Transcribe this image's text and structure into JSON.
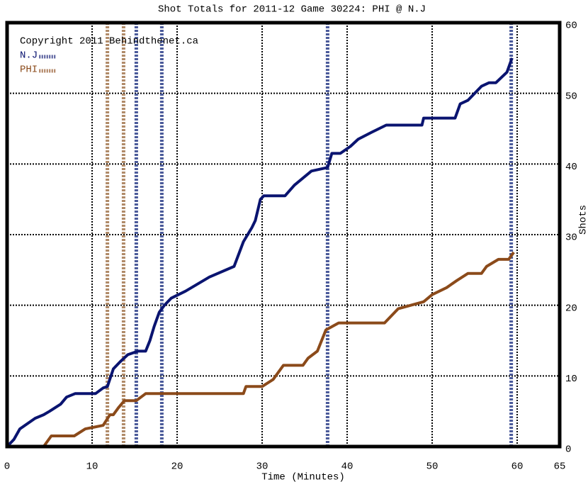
{
  "chart_data": {
    "type": "line",
    "title": "Shot Totals for 2011-12 Game 30224: PHI @ N.J",
    "annotation": "Copyright 2011 Behindthenet.ca",
    "x_label": "Time (Minutes)",
    "y_label": "Shots",
    "xlim": [
      0,
      65
    ],
    "xticks": [
      0,
      10,
      20,
      30,
      40,
      50,
      60,
      65
    ],
    "ylim": [
      0,
      60
    ],
    "yticks": [
      0,
      10,
      20,
      30,
      40,
      50,
      60
    ],
    "grid_x": [
      10,
      20,
      30,
      40,
      50,
      60
    ],
    "grid_y": [
      10,
      20,
      30,
      40,
      50
    ],
    "series": [
      {
        "name": "N.J",
        "color": "#0a1470",
        "x": [
          0,
          0.8,
          1.5,
          2.1,
          3.3,
          4.3,
          5,
          6.3,
          7,
          8,
          10.4,
          11.3,
          11.8,
          12.5,
          13.3,
          14.2,
          15.4,
          16.3,
          16.8,
          17.3,
          17.9,
          18.5,
          19.3,
          21,
          23.8,
          26.7,
          27.8,
          28.8,
          29.2,
          29.8,
          30.2,
          32.7,
          33.8,
          35.8,
          37.7,
          38.2,
          39.2,
          40.4,
          41.3,
          42.9,
          44.6,
          48.8,
          49,
          52.7,
          53.3,
          54.2,
          55,
          55.8,
          56.7,
          57.5,
          58.8,
          59.4
        ],
        "values": [
          0,
          1,
          2.5,
          3,
          4,
          4.5,
          5,
          6,
          7,
          7.5,
          7.5,
          8.3,
          8.5,
          11,
          12,
          13,
          13.5,
          13.5,
          15,
          17,
          19,
          20,
          21,
          22,
          24,
          25.5,
          29,
          31,
          32,
          35,
          35.5,
          35.5,
          37,
          39,
          39.5,
          41.5,
          41.5,
          42.5,
          43.5,
          44.5,
          45.5,
          45.5,
          46.5,
          46.5,
          48.5,
          49,
          50,
          51,
          51.5,
          51.5,
          53,
          55
        ]
      },
      {
        "name": "PHI",
        "color": "#8b4a1a",
        "x": [
          0,
          4.3,
          5.2,
          7.9,
          9.2,
          11.3,
          12.1,
          12.5,
          13.1,
          13.8,
          15.2,
          16.3,
          27.8,
          28.1,
          30,
          31.3,
          32.5,
          34.8,
          35.4,
          36.5,
          37.5,
          39,
          44.4,
          46,
          49,
          50,
          51.7,
          52.9,
          54.2,
          55.8,
          56.4,
          57.8,
          59,
          59.6
        ],
        "values": [
          0,
          0,
          1.5,
          1.5,
          2.5,
          3,
          4.5,
          4.5,
          5.5,
          6.5,
          6.5,
          7.5,
          7.5,
          8.5,
          8.5,
          9.5,
          11.5,
          11.5,
          12.5,
          13.5,
          16.5,
          17.5,
          17.5,
          19.5,
          20.5,
          21.5,
          22.5,
          23.5,
          24.5,
          24.5,
          25.5,
          26.5,
          26.5,
          27.5
        ]
      }
    ],
    "goal_lines": [
      {
        "x": 11.8,
        "color": "#b08a68"
      },
      {
        "x": 13.7,
        "color": "#b08a68"
      },
      {
        "x": 15.2,
        "color": "#4a5a9a"
      },
      {
        "x": 18.2,
        "color": "#4a5a9a"
      },
      {
        "x": 37.7,
        "color": "#4a5a9a"
      },
      {
        "x": 59.3,
        "color": "#4a5a9a"
      }
    ]
  }
}
